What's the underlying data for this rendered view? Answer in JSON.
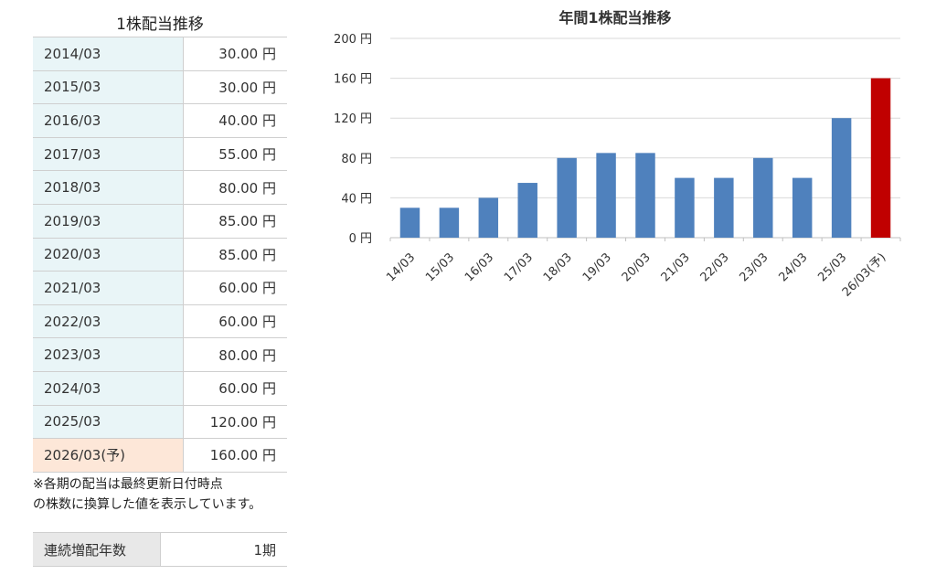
{
  "table": {
    "title": "1株配当推移",
    "rows": [
      {
        "period": "2014/03",
        "amount": "30.00 円"
      },
      {
        "period": "2015/03",
        "amount": "30.00 円"
      },
      {
        "period": "2016/03",
        "amount": "40.00 円"
      },
      {
        "period": "2017/03",
        "amount": "55.00 円"
      },
      {
        "period": "2018/03",
        "amount": "80.00 円"
      },
      {
        "period": "2019/03",
        "amount": "85.00 円"
      },
      {
        "period": "2020/03",
        "amount": "85.00 円"
      },
      {
        "period": "2021/03",
        "amount": "60.00 円"
      },
      {
        "period": "2022/03",
        "amount": "60.00 円"
      },
      {
        "period": "2023/03",
        "amount": "80.00 円"
      },
      {
        "period": "2024/03",
        "amount": "60.00 円"
      },
      {
        "period": "2025/03",
        "amount": "120.00 円"
      },
      {
        "period": "2026/03(予)",
        "amount": "160.00 円"
      }
    ],
    "note_line1": "※各期の配当は最終更新日付時点",
    "note_line2": "の株数に換算した値を表示しています。"
  },
  "streak": {
    "label": "連続増配年数",
    "value": "1期"
  },
  "colors": {
    "bar": "#4f81bd",
    "forecast_bar": "#c00000",
    "history_cell": "#e9f5f7",
    "forecast_cell": "#fde7d8",
    "grid": "#d9d9d9"
  },
  "chart_data": {
    "type": "bar",
    "title": "年間1株配当推移",
    "categories": [
      "14/03",
      "15/03",
      "16/03",
      "17/03",
      "18/03",
      "19/03",
      "20/03",
      "21/03",
      "22/03",
      "23/03",
      "24/03",
      "25/03",
      "26/03(予)"
    ],
    "values": [
      30,
      30,
      40,
      55,
      80,
      85,
      85,
      60,
      60,
      80,
      60,
      120,
      160
    ],
    "highlighted_category": "26/03(予)",
    "ylim": [
      0,
      200
    ],
    "yticks": [
      0,
      40,
      80,
      120,
      160,
      200
    ],
    "ytick_labels": [
      "0 円",
      "40 円",
      "80 円",
      "120 円",
      "160 円",
      "200 円"
    ],
    "xlabel": "",
    "ylabel": "",
    "grid": true,
    "legend": "none"
  }
}
